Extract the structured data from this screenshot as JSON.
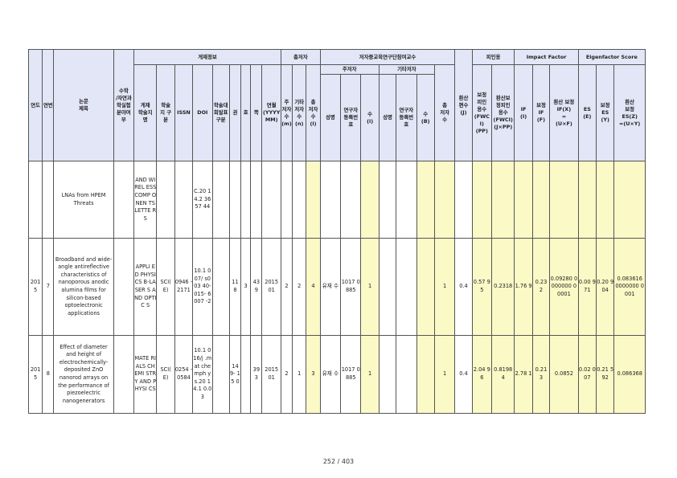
{
  "header": {
    "year": "연도",
    "seq": "연번",
    "paper_title": "논문\n제목",
    "math": "수학\n/자연과\n학실험\n분야여\n부",
    "publication": "게재정보",
    "pub_cols": [
      "게재\n학술지\n명",
      "학술\n지 구\n분",
      "ISSN",
      "DOI",
      "학술대\n회발표\n구분",
      "권",
      "호",
      "쪽",
      "연월\n(YYYY\nMM)"
    ],
    "total_authors": "총저자",
    "total_cols": [
      "주\n저자\n수\n(m)",
      "기타\n저자\n수\n(n)",
      "총\n저자\n수\n(l)"
    ],
    "participant": "저자중교육연구단참여교수",
    "main_author": "주저자",
    "other_author": "기타저자",
    "main_cols": [
      "성명",
      "연구자\n등록번\n호",
      "수\n(i)"
    ],
    "other_cols": [
      "성명",
      "연구자\n등록번\n호",
      "수\n(B)"
    ],
    "participant_total": "총\n저자\n수",
    "converted": "환산\n편수\n(J)",
    "citation": "피인용",
    "cit_cols": [
      "보정\n피인\n용수\n(FWC\nI)\n(PP)",
      "환산보\n정피인\n용수\n(FWCI)\n(J×PP)"
    ],
    "impact": "Impact Factor",
    "if_cols": [
      "IF\n(I)",
      "보정\nIF\n(F)",
      "환산 보정\nIF(X)\n=\n(U×F)"
    ],
    "eigen": "Eigenfactor Score",
    "es_cols": [
      "ES\n(E)",
      "보정\nES\n(Y)",
      "환산\n보정\nES(Z)\n=(U×Y)"
    ]
  },
  "rows": [
    {
      "year": "",
      "seq": "",
      "title": "LNAs from HPEM Threats",
      "math": "",
      "journal": "AND WIREL ESS COMP ONEN TS LETTE RS",
      "kind": "",
      "issn": "",
      "doi": "C.20 14.2 3657 44",
      "conf": "",
      "vol": "",
      "no": "",
      "page": "",
      "ym": "",
      "m": "",
      "n": "",
      "l": "",
      "main_name": "",
      "main_reg": "",
      "main_cnt": "",
      "oth_name": "",
      "oth_reg": "",
      "oth_cnt": "",
      "total": "",
      "conv": "",
      "fwci": "",
      "fwci_conv": "",
      "if": "",
      "if_adj": "",
      "if_conv": "",
      "es": "",
      "es_adj": "",
      "es_conv": ""
    },
    {
      "year": "201 5",
      "seq": "7",
      "title": "Broadband and wide-angle antireflective characteristics of nanoporous anodic alumina films for silicon-based optoelectronic applications",
      "math": "",
      "journal": "APPLI ED PHYSI CS B-LASER S AND OPTIC S",
      "kind": "SCI( E)",
      "issn": "0946 - 2171",
      "doi": "10.1 007/ s003 40- 015- 6007 -2",
      "conf": "",
      "vol": "11 8",
      "no": "3",
      "page": "43 9",
      "ym": "2015 01",
      "m": "2",
      "n": "2",
      "l": "4",
      "main_name": "유재 수",
      "main_reg": "1017 0885",
      "main_cnt": "1",
      "oth_name": "",
      "oth_reg": "",
      "oth_cnt": "",
      "total": "1",
      "conv": "0.4",
      "fwci": "0.57 95",
      "fwci_conv": "0.2318",
      "if": "1.76 9",
      "if_adj": "0.23 2",
      "if_conv": "0.09280 0000000 00001",
      "es": "0.00 971",
      "es_adj": "0.20 904",
      "es_conv": "0.083616 0000000 0001"
    },
    {
      "year": "201 5",
      "seq": "8",
      "title": "Effect of diameter and height of electrochemically-deposited ZnO nanorod arrays on the performance of piezoelectric nanogenerators",
      "math": "",
      "journal": "MATE RIALS CHEMI STRY AND PHYSI CS",
      "kind": "SCI( E)",
      "issn": "0254 - 0584",
      "doi": "10.1 016/j .mat che mph ys.20 14.1 0.03",
      "conf": "",
      "vol": "14 9- 15 0",
      "no": "",
      "page": "39 3",
      "ym": "2015 01",
      "m": "2",
      "n": "1",
      "l": "3",
      "main_name": "유재 수",
      "main_reg": "1017 0885",
      "main_cnt": "1",
      "oth_name": "",
      "oth_reg": "",
      "oth_cnt": "",
      "total": "1",
      "conv": "0.4",
      "fwci": "2.04 96",
      "fwci_conv": "0.8198 4",
      "if": "2.78 1",
      "if_adj": "0.21 3",
      "if_conv": "0.0852",
      "es": "0.02 007",
      "es_adj": "0.21 592",
      "es_conv": "0.086368"
    }
  ],
  "footer": {
    "page": "252 / 403"
  }
}
